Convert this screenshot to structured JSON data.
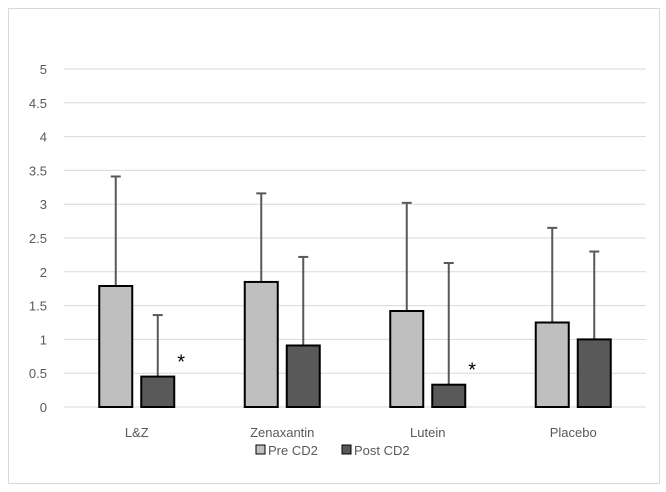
{
  "chart_data": {
    "type": "bar",
    "title": "",
    "xlabel": "",
    "ylabel": "",
    "categories": [
      "L&Z",
      "Zenaxantin",
      "Lutein",
      "Placebo"
    ],
    "ylim": [
      0,
      5
    ],
    "yticks": [
      "0",
      "0.5",
      "1",
      "1.5",
      "2",
      "2.5",
      "3",
      "3.5",
      "4",
      "4.5",
      "5"
    ],
    "grid": true,
    "legend": "bottom",
    "series": [
      {
        "name": "Pre CD2",
        "color": "#bfbfbf",
        "values": [
          1.79,
          1.85,
          1.42,
          1.25
        ],
        "error_upper": [
          3.41,
          3.16,
          3.02,
          2.65
        ]
      },
      {
        "name": "Post CD2",
        "color": "#595959",
        "values": [
          0.45,
          0.91,
          0.33,
          1.0
        ],
        "error_upper": [
          1.36,
          2.22,
          2.13,
          2.3
        ]
      }
    ],
    "annotations": [
      {
        "category": "L&Z",
        "series": "Post CD2",
        "text": "*"
      },
      {
        "category": "Lutein",
        "series": "Post CD2",
        "text": "*"
      }
    ]
  }
}
